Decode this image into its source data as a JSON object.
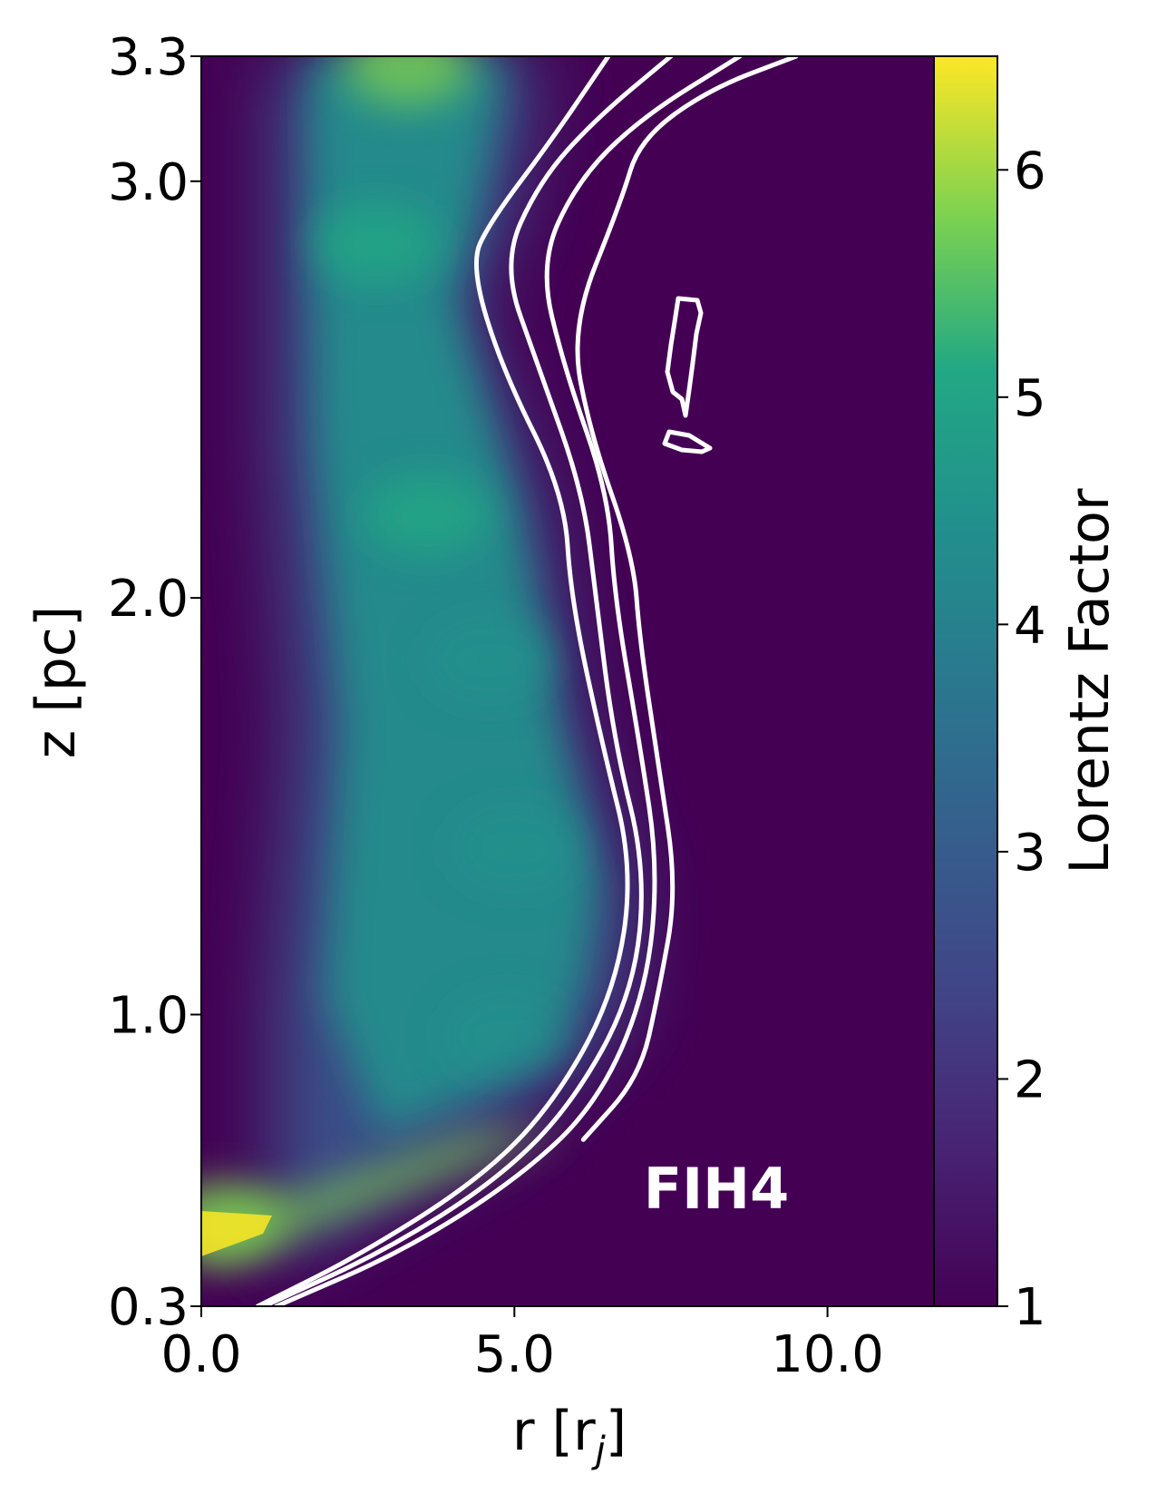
{
  "chart_data": {
    "type": "heatmap",
    "panel_label": "FIH4",
    "xlabel_main": "r [r",
    "xlabel_sub": "j",
    "xlabel_end": "]",
    "ylabel": "z [pc]",
    "xlim": [
      0.0,
      11.7
    ],
    "ylim": [
      0.3,
      3.3
    ],
    "xticks": [
      0.0,
      5.0,
      10.0
    ],
    "xtick_labels": [
      "0.0",
      "5.0",
      "10.0"
    ],
    "yticks": [
      0.3,
      1.0,
      2.0,
      3.0,
      3.3
    ],
    "ytick_labels": [
      "0.3",
      "1.0",
      "2.0",
      "3.0",
      "3.3"
    ],
    "colorbar": {
      "label": "Lorentz Factor",
      "range": [
        1,
        6.5
      ],
      "ticks": [
        1,
        2,
        3,
        4,
        5,
        6
      ],
      "tick_labels": [
        "1",
        "2",
        "3",
        "4",
        "5",
        "6"
      ],
      "colormap": "viridis"
    },
    "colors": {
      "background": "#440154",
      "contour": "#ffffff"
    },
    "high_lorentz_features": [
      {
        "r": 3.3,
        "z": 3.28,
        "value": 6.0
      },
      {
        "r": 2.8,
        "z": 2.85,
        "value": 5.4
      },
      {
        "r": 3.6,
        "z": 2.2,
        "value": 5.6
      },
      {
        "r": 4.6,
        "z": 1.85,
        "value": 5.0
      },
      {
        "r": 5.0,
        "z": 1.4,
        "value": 4.8
      },
      {
        "r": 4.9,
        "z": 0.95,
        "value": 4.6
      },
      {
        "r": 0.3,
        "z": 0.5,
        "value": 6.3
      }
    ],
    "contours": [
      {
        "points": [
          [
            0.9,
            0.3
          ],
          [
            2.5,
            0.42
          ],
          [
            4.4,
            0.6
          ],
          [
            5.6,
            0.78
          ],
          [
            6.6,
            1.05
          ],
          [
            6.9,
            1.35
          ],
          [
            6.4,
            1.65
          ],
          [
            5.9,
            2.0
          ],
          [
            5.8,
            2.25
          ],
          [
            4.8,
            2.55
          ],
          [
            4.3,
            2.8
          ],
          [
            4.6,
            2.9
          ],
          [
            5.6,
            3.1
          ],
          [
            6.5,
            3.3
          ]
        ]
      },
      {
        "points": [
          [
            1.0,
            0.3
          ],
          [
            2.9,
            0.43
          ],
          [
            4.7,
            0.6
          ],
          [
            5.9,
            0.78
          ],
          [
            6.9,
            1.05
          ],
          [
            7.1,
            1.35
          ],
          [
            6.6,
            1.65
          ],
          [
            6.3,
            2.0
          ],
          [
            6.1,
            2.25
          ],
          [
            5.4,
            2.55
          ],
          [
            4.8,
            2.8
          ],
          [
            5.4,
            3.0
          ],
          [
            6.3,
            3.15
          ],
          [
            7.5,
            3.3
          ]
        ]
      },
      {
        "points": [
          [
            1.2,
            0.3
          ],
          [
            3.2,
            0.43
          ],
          [
            5.0,
            0.6
          ],
          [
            6.3,
            0.78
          ],
          [
            7.1,
            1.05
          ],
          [
            7.3,
            1.35
          ],
          [
            7.0,
            1.65
          ],
          [
            6.6,
            2.0
          ],
          [
            6.5,
            2.25
          ],
          [
            5.8,
            2.55
          ],
          [
            5.4,
            2.8
          ],
          [
            6.0,
            3.0
          ],
          [
            7.0,
            3.15
          ],
          [
            8.6,
            3.3
          ]
        ]
      },
      {
        "points": [
          [
            6.1,
            0.7
          ],
          [
            7.0,
            0.85
          ],
          [
            7.3,
            1.05
          ],
          [
            7.6,
            1.3
          ],
          [
            7.3,
            1.6
          ],
          [
            7.0,
            1.9
          ],
          [
            6.9,
            2.1
          ],
          [
            6.2,
            2.4
          ],
          [
            5.9,
            2.65
          ],
          [
            6.7,
            2.95
          ],
          [
            7.0,
            3.1
          ],
          [
            8.1,
            3.22
          ],
          [
            9.5,
            3.3
          ]
        ]
      }
    ]
  }
}
